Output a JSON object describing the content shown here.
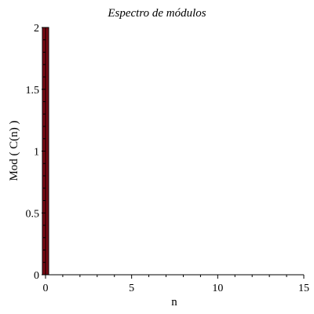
{
  "chart_data": {
    "type": "bar",
    "title": "Espectro de módulos",
    "xlabel": "n",
    "ylabel": "Mod ( C(n) )",
    "x": [
      0
    ],
    "values": [
      2
    ],
    "xlim": [
      0,
      15
    ],
    "ylim": [
      0,
      2
    ],
    "x_ticks": [
      "0",
      "5",
      "10",
      "15"
    ],
    "y_ticks": [
      "0",
      "0.5",
      "1",
      "1.5",
      "2"
    ],
    "bar_color": "#7a0a14",
    "bar_edge_color": "#000000",
    "grid": false,
    "legend": "none"
  }
}
